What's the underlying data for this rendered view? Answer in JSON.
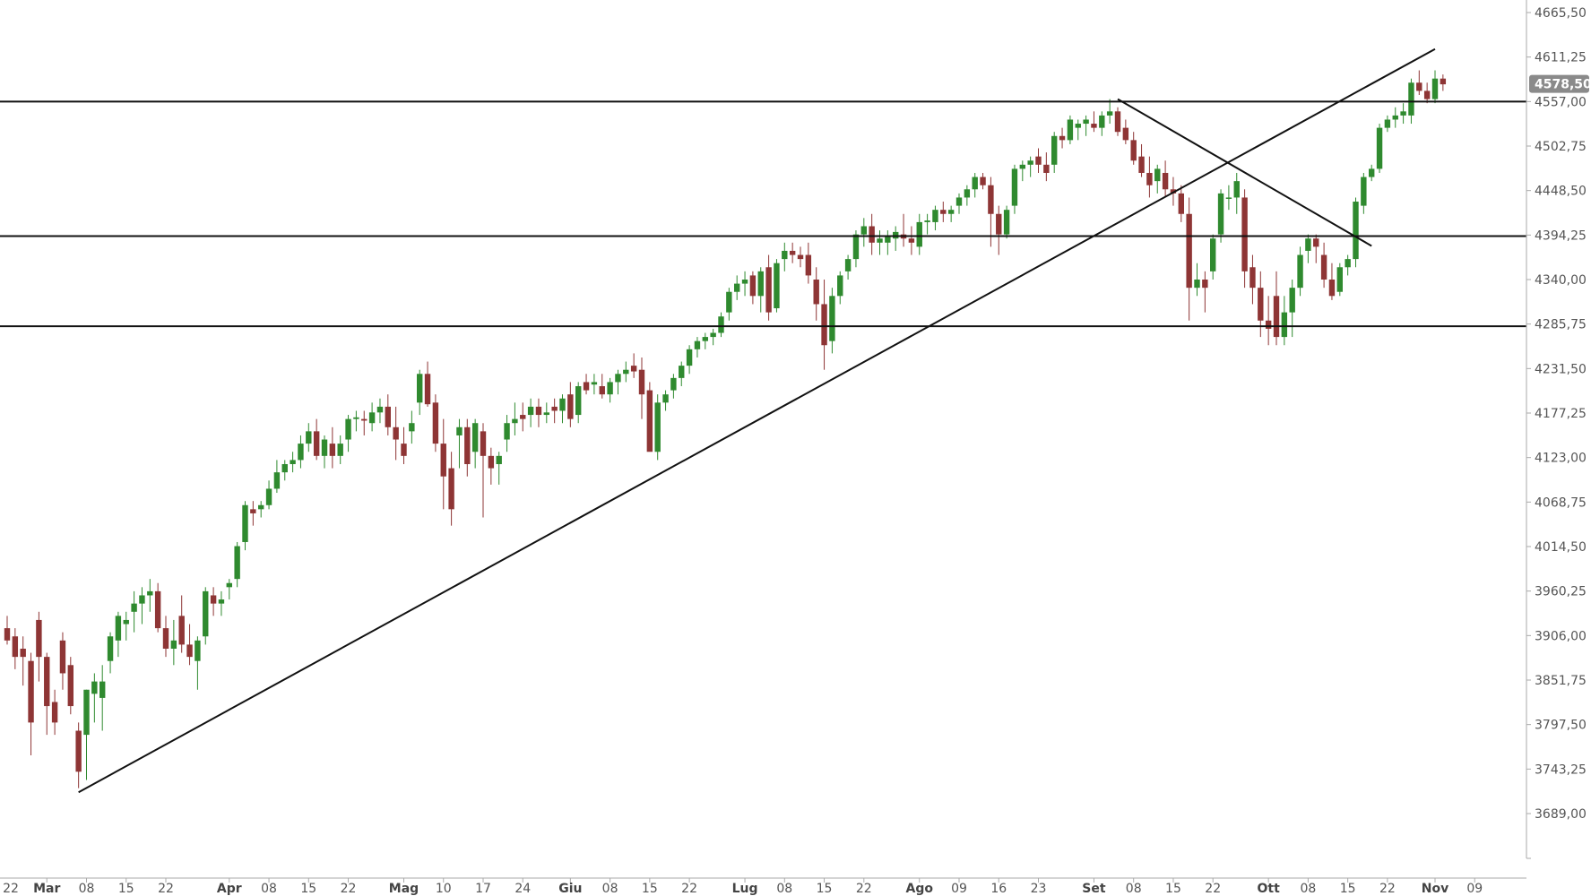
{
  "chart_data": {
    "type": "candlestick",
    "title": "",
    "y_axis": {
      "position": "right",
      "ylim": [
        3634.0,
        4690.0
      ],
      "ticks": [
        "4665,50",
        "4611,25",
        "4557,00",
        "4502,75",
        "4448,50",
        "4394,25",
        "4340,00",
        "4285,75",
        "4231,50",
        "4177,25",
        "4123,00",
        "4068,75",
        "4014,50",
        "3960,25",
        "3906,00",
        "3851,75",
        "3797,50",
        "3743,25",
        "3689,00"
      ],
      "tick_values": [
        4665.5,
        4611.25,
        4557.0,
        4502.75,
        4448.5,
        4394.25,
        4340.0,
        4285.75,
        4231.5,
        4177.25,
        4123.0,
        4068.75,
        4014.5,
        3960.25,
        3906.0,
        3851.75,
        3797.5,
        3743.25,
        3689.0
      ]
    },
    "last_price": {
      "label": "4578,50",
      "value": 4578.5,
      "color": "#8a8a8a"
    },
    "x_axis": {
      "labels": [
        {
          "text": "22",
          "idx": -1,
          "month": false
        },
        {
          "text": "Mar",
          "idx": 5,
          "month": true
        },
        {
          "text": "08",
          "idx": 10,
          "month": false
        },
        {
          "text": "15",
          "idx": 15,
          "month": false
        },
        {
          "text": "22",
          "idx": 20,
          "month": false
        },
        {
          "text": "Apr",
          "idx": 28,
          "month": true
        },
        {
          "text": "08",
          "idx": 33,
          "month": false
        },
        {
          "text": "15",
          "idx": 38,
          "month": false
        },
        {
          "text": "22",
          "idx": 43,
          "month": false
        },
        {
          "text": "Mag",
          "idx": 50,
          "month": true
        },
        {
          "text": "10",
          "idx": 55,
          "month": false
        },
        {
          "text": "17",
          "idx": 60,
          "month": false
        },
        {
          "text": "24",
          "idx": 65,
          "month": false
        },
        {
          "text": "Giu",
          "idx": 71,
          "month": true
        },
        {
          "text": "08",
          "idx": 76,
          "month": false
        },
        {
          "text": "15",
          "idx": 81,
          "month": false
        },
        {
          "text": "22",
          "idx": 86,
          "month": false
        },
        {
          "text": "Lug",
          "idx": 93,
          "month": true
        },
        {
          "text": "08",
          "idx": 98,
          "month": false
        },
        {
          "text": "15",
          "idx": 103,
          "month": false
        },
        {
          "text": "22",
          "idx": 108,
          "month": false
        },
        {
          "text": "Ago",
          "idx": 115,
          "month": true
        },
        {
          "text": "09",
          "idx": 120,
          "month": false
        },
        {
          "text": "16",
          "idx": 125,
          "month": false
        },
        {
          "text": "23",
          "idx": 130,
          "month": false
        },
        {
          "text": "Set",
          "idx": 137,
          "month": true
        },
        {
          "text": "08",
          "idx": 142,
          "month": false
        },
        {
          "text": "15",
          "idx": 147,
          "month": false
        },
        {
          "text": "22",
          "idx": 152,
          "month": false
        },
        {
          "text": "Ott",
          "idx": 159,
          "month": true
        },
        {
          "text": "08",
          "idx": 164,
          "month": false
        },
        {
          "text": "15",
          "idx": 169,
          "month": false
        },
        {
          "text": "22",
          "idx": 174,
          "month": false
        },
        {
          "text": "Nov",
          "idx": 180,
          "month": true
        },
        {
          "text": "09",
          "idx": 185,
          "month": false
        }
      ]
    },
    "candle_colors": {
      "up": "#2f8a2f",
      "down": "#8e3535",
      "wick": "#555555"
    },
    "horizontal_lines": [
      4557.0,
      4393.0,
      4283.0
    ],
    "trend_lines": [
      {
        "from": [
          9,
          3715.0
        ],
        "to": [
          180,
          4621.0
        ]
      },
      {
        "from": [
          140,
          4560.0
        ],
        "to": [
          172,
          4381.0
        ]
      }
    ],
    "candles": [
      [
        3915,
        3930,
        3895,
        3900
      ],
      [
        3905,
        3915,
        3865,
        3880
      ],
      [
        3890,
        3905,
        3845,
        3880
      ],
      [
        3875,
        3885,
        3760,
        3800
      ],
      [
        3925,
        3935,
        3850,
        3880
      ],
      [
        3880,
        3885,
        3785,
        3820
      ],
      [
        3825,
        3840,
        3785,
        3800
      ],
      [
        3900,
        3910,
        3840,
        3860
      ],
      [
        3870,
        3880,
        3810,
        3820
      ],
      [
        3790,
        3800,
        3720,
        3740
      ],
      [
        3785,
        3840,
        3730,
        3840
      ],
      [
        3835,
        3860,
        3800,
        3850
      ],
      [
        3830,
        3870,
        3790,
        3850
      ],
      [
        3875,
        3910,
        3860,
        3905
      ],
      [
        3900,
        3935,
        3880,
        3930
      ],
      [
        3920,
        3935,
        3900,
        3925
      ],
      [
        3935,
        3960,
        3910,
        3945
      ],
      [
        3945,
        3965,
        3920,
        3955
      ],
      [
        3955,
        3975,
        3935,
        3960
      ],
      [
        3960,
        3970,
        3910,
        3915
      ],
      [
        3915,
        3930,
        3880,
        3890
      ],
      [
        3890,
        3925,
        3870,
        3900
      ],
      [
        3930,
        3955,
        3885,
        3895
      ],
      [
        3895,
        3920,
        3870,
        3880
      ],
      [
        3875,
        3905,
        3840,
        3900
      ],
      [
        3905,
        3965,
        3895,
        3960
      ],
      [
        3955,
        3965,
        3930,
        3945
      ],
      [
        3945,
        3960,
        3930,
        3950
      ],
      [
        3965,
        3975,
        3950,
        3970
      ],
      [
        3975,
        4020,
        3965,
        4015
      ],
      [
        4020,
        4070,
        4010,
        4065
      ],
      [
        4060,
        4070,
        4040,
        4055
      ],
      [
        4060,
        4070,
        4050,
        4065
      ],
      [
        4065,
        4095,
        4060,
        4085
      ],
      [
        4085,
        4120,
        4080,
        4105
      ],
      [
        4105,
        4120,
        4095,
        4115
      ],
      [
        4115,
        4130,
        4105,
        4120
      ],
      [
        4120,
        4150,
        4110,
        4140
      ],
      [
        4140,
        4165,
        4130,
        4155
      ],
      [
        4155,
        4170,
        4120,
        4125
      ],
      [
        4125,
        4150,
        4110,
        4145
      ],
      [
        4140,
        4160,
        4110,
        4125
      ],
      [
        4125,
        4150,
        4115,
        4140
      ],
      [
        4145,
        4175,
        4130,
        4170
      ],
      [
        4170,
        4180,
        4155,
        4172
      ],
      [
        4170,
        4180,
        4150,
        4168
      ],
      [
        4165,
        4190,
        4155,
        4178
      ],
      [
        4178,
        4195,
        4165,
        4185
      ],
      [
        4185,
        4200,
        4150,
        4160
      ],
      [
        4160,
        4185,
        4120,
        4145
      ],
      [
        4140,
        4160,
        4115,
        4125
      ],
      [
        4155,
        4180,
        4140,
        4165
      ],
      [
        4190,
        4230,
        4175,
        4225
      ],
      [
        4225,
        4240,
        4185,
        4188
      ],
      [
        4190,
        4200,
        4130,
        4140
      ],
      [
        4140,
        4170,
        4060,
        4100
      ],
      [
        4110,
        4130,
        4040,
        4060
      ],
      [
        4150,
        4170,
        4110,
        4160
      ],
      [
        4160,
        4170,
        4100,
        4115
      ],
      [
        4130,
        4170,
        4110,
        4165
      ],
      [
        4155,
        4165,
        4050,
        4125
      ],
      [
        4125,
        4135,
        4090,
        4110
      ],
      [
        4115,
        4130,
        4090,
        4125
      ],
      [
        4145,
        4175,
        4130,
        4165
      ],
      [
        4165,
        4190,
        4150,
        4170
      ],
      [
        4175,
        4190,
        4155,
        4170
      ],
      [
        4175,
        4195,
        4160,
        4185
      ],
      [
        4185,
        4195,
        4160,
        4175
      ],
      [
        4175,
        4190,
        4165,
        4178
      ],
      [
        4185,
        4195,
        4165,
        4180
      ],
      [
        4180,
        4200,
        4165,
        4195
      ],
      [
        4200,
        4215,
        4160,
        4170
      ],
      [
        4175,
        4215,
        4165,
        4210
      ],
      [
        4215,
        4225,
        4200,
        4205
      ],
      [
        4212,
        4225,
        4200,
        4215
      ],
      [
        4210,
        4225,
        4195,
        4200
      ],
      [
        4200,
        4220,
        4190,
        4215
      ],
      [
        4215,
        4230,
        4200,
        4225
      ],
      [
        4225,
        4240,
        4215,
        4230
      ],
      [
        4235,
        4250,
        4220,
        4228
      ],
      [
        4230,
        4245,
        4170,
        4200
      ],
      [
        4205,
        4215,
        4140,
        4130
      ],
      [
        4130,
        4200,
        4120,
        4190
      ],
      [
        4190,
        4205,
        4180,
        4200
      ],
      [
        4205,
        4225,
        4195,
        4220
      ],
      [
        4220,
        4240,
        4210,
        4235
      ],
      [
        4235,
        4260,
        4225,
        4255
      ],
      [
        4255,
        4270,
        4245,
        4265
      ],
      [
        4265,
        4275,
        4255,
        4270
      ],
      [
        4270,
        4280,
        4260,
        4275
      ],
      [
        4275,
        4300,
        4270,
        4295
      ],
      [
        4300,
        4330,
        4290,
        4325
      ],
      [
        4325,
        4345,
        4315,
        4335
      ],
      [
        4335,
        4350,
        4320,
        4340
      ],
      [
        4345,
        4350,
        4310,
        4320
      ],
      [
        4320,
        4355,
        4300,
        4350
      ],
      [
        4355,
        4370,
        4290,
        4300
      ],
      [
        4305,
        4365,
        4300,
        4360
      ],
      [
        4365,
        4385,
        4350,
        4375
      ],
      [
        4375,
        4385,
        4360,
        4370
      ],
      [
        4370,
        4380,
        4355,
        4365
      ],
      [
        4370,
        4385,
        4335,
        4345
      ],
      [
        4340,
        4355,
        4290,
        4310
      ],
      [
        4310,
        4340,
        4230,
        4260
      ],
      [
        4265,
        4330,
        4250,
        4320
      ],
      [
        4320,
        4350,
        4310,
        4345
      ],
      [
        4350,
        4370,
        4340,
        4365
      ],
      [
        4365,
        4400,
        4355,
        4395
      ],
      [
        4395,
        4415,
        4380,
        4405
      ],
      [
        4405,
        4420,
        4370,
        4385
      ],
      [
        4385,
        4400,
        4370,
        4390
      ],
      [
        4385,
        4400,
        4370,
        4392
      ],
      [
        4390,
        4405,
        4375,
        4398
      ],
      [
        4395,
        4420,
        4380,
        4390
      ],
      [
        4390,
        4405,
        4370,
        4385
      ],
      [
        4380,
        4420,
        4370,
        4410
      ],
      [
        4410,
        4420,
        4395,
        4412
      ],
      [
        4410,
        4430,
        4400,
        4425
      ],
      [
        4425,
        4435,
        4410,
        4420
      ],
      [
        4420,
        4430,
        4410,
        4425
      ],
      [
        4430,
        4445,
        4420,
        4440
      ],
      [
        4440,
        4455,
        4430,
        4450
      ],
      [
        4450,
        4470,
        4440,
        4465
      ],
      [
        4465,
        4470,
        4450,
        4455
      ],
      [
        4455,
        4465,
        4380,
        4420
      ],
      [
        4420,
        4430,
        4370,
        4395
      ],
      [
        4395,
        4430,
        4390,
        4425
      ],
      [
        4430,
        4480,
        4420,
        4475
      ],
      [
        4475,
        4485,
        4460,
        4480
      ],
      [
        4480,
        4490,
        4465,
        4485
      ],
      [
        4490,
        4500,
        4470,
        4480
      ],
      [
        4480,
        4495,
        4460,
        4470
      ],
      [
        4480,
        4520,
        4470,
        4515
      ],
      [
        4515,
        4525,
        4500,
        4510
      ],
      [
        4510,
        4540,
        4505,
        4535
      ],
      [
        4525,
        4535,
        4510,
        4530
      ],
      [
        4530,
        4540,
        4515,
        4535
      ],
      [
        4530,
        4545,
        4520,
        4525
      ],
      [
        4525,
        4545,
        4515,
        4540
      ],
      [
        4540,
        4560,
        4530,
        4545
      ],
      [
        4545,
        4550,
        4515,
        4520
      ],
      [
        4525,
        4535,
        4505,
        4510
      ],
      [
        4510,
        4520,
        4480,
        4485
      ],
      [
        4490,
        4505,
        4465,
        4470
      ],
      [
        4470,
        4490,
        4440,
        4455
      ],
      [
        4460,
        4480,
        4445,
        4475
      ],
      [
        4470,
        4485,
        4440,
        4450
      ],
      [
        4450,
        4465,
        4430,
        4445
      ],
      [
        4445,
        4455,
        4410,
        4420
      ],
      [
        4420,
        4440,
        4290,
        4330
      ],
      [
        4330,
        4360,
        4320,
        4340
      ],
      [
        4340,
        4350,
        4300,
        4330
      ],
      [
        4350,
        4395,
        4340,
        4390
      ],
      [
        4395,
        4450,
        4385,
        4445
      ],
      [
        4440,
        4455,
        4425,
        4440
      ],
      [
        4440,
        4470,
        4420,
        4460
      ],
      [
        4440,
        4450,
        4330,
        4350
      ],
      [
        4355,
        4370,
        4310,
        4330
      ],
      [
        4330,
        4350,
        4270,
        4290
      ],
      [
        4290,
        4320,
        4260,
        4280
      ],
      [
        4320,
        4350,
        4260,
        4270
      ],
      [
        4270,
        4320,
        4260,
        4300
      ],
      [
        4300,
        4340,
        4270,
        4330
      ],
      [
        4330,
        4380,
        4320,
        4370
      ],
      [
        4375,
        4395,
        4360,
        4390
      ],
      [
        4390,
        4395,
        4360,
        4380
      ],
      [
        4370,
        4385,
        4330,
        4340
      ],
      [
        4340,
        4360,
        4315,
        4320
      ],
      [
        4325,
        4360,
        4320,
        4355
      ],
      [
        4355,
        4370,
        4345,
        4365
      ],
      [
        4365,
        4440,
        4355,
        4435
      ],
      [
        4430,
        4470,
        4420,
        4465
      ],
      [
        4465,
        4480,
        4460,
        4475
      ],
      [
        4475,
        4530,
        4470,
        4525
      ],
      [
        4525,
        4540,
        4520,
        4535
      ],
      [
        4535,
        4550,
        4525,
        4540
      ],
      [
        4540,
        4555,
        4530,
        4545
      ],
      [
        4540,
        4585,
        4530,
        4580
      ],
      [
        4580,
        4595,
        4565,
        4570
      ],
      [
        4570,
        4580,
        4555,
        4560
      ],
      [
        4560,
        4595,
        4555,
        4585
      ],
      [
        4585,
        4590,
        4570,
        4578
      ]
    ]
  }
}
